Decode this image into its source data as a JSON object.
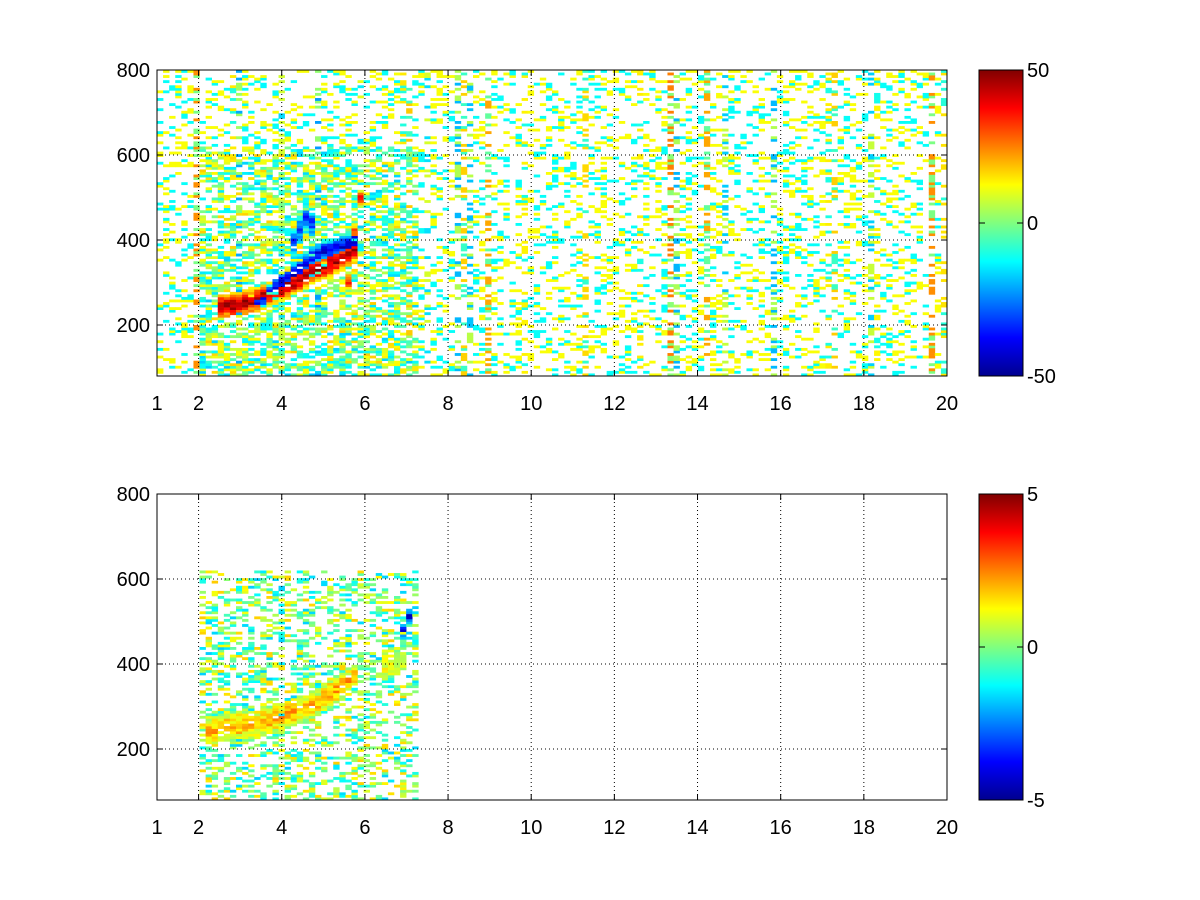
{
  "chart_data": [
    {
      "type": "heatmap",
      "title": "",
      "xlabel": "",
      "ylabel": "",
      "xlim": [
        1,
        20
      ],
      "ylim": [
        80,
        800
      ],
      "x_ticks": [
        1,
        2,
        4,
        6,
        8,
        10,
        12,
        14,
        16,
        18,
        20
      ],
      "x_tick_labels": [
        "1",
        "2",
        "4",
        "6",
        "8",
        "10",
        "12",
        "14",
        "16",
        "18",
        "20"
      ],
      "y_ticks": [
        200,
        400,
        600,
        800
      ],
      "y_tick_labels": [
        "200",
        "400",
        "600",
        "800"
      ],
      "grid": true,
      "colormap": "jet",
      "colorbar": {
        "range": [
          -50,
          50
        ],
        "ticks": [
          -50,
          0,
          50
        ],
        "tick_labels": [
          "-50",
          "0",
          "50"
        ]
      },
      "features": [
        {
          "name": "main-ridge",
          "x": [
            2.4,
            2.8,
            3.2,
            3.6,
            4.0,
            4.4,
            4.8,
            5.2,
            5.6,
            5.8
          ],
          "y": [
            245,
            245,
            255,
            268,
            285,
            305,
            330,
            345,
            365,
            380
          ],
          "value": 45,
          "width": 18
        },
        {
          "name": "secondary-ridge-blue",
          "x": [
            3.2,
            3.6,
            4.0,
            4.4,
            4.8,
            5.2,
            5.6,
            5.8
          ],
          "y": [
            255,
            265,
            300,
            330,
            365,
            380,
            390,
            400
          ],
          "value": -40,
          "width": 16
        },
        {
          "name": "blue-band-4_5",
          "x": [
            4.2,
            4.4,
            4.6,
            4.8
          ],
          "y": [
            380,
            420,
            460,
            430
          ],
          "value": -30,
          "width": 20
        },
        {
          "name": "red-band-5_7",
          "x": [
            5.6,
            5.7,
            5.8,
            5.9
          ],
          "y": [
            300,
            380,
            450,
            500
          ],
          "value": 35,
          "width": 12
        }
      ]
    },
    {
      "type": "heatmap",
      "title": "",
      "xlabel": "",
      "ylabel": "",
      "xlim": [
        1,
        20
      ],
      "ylim": [
        80,
        800
      ],
      "x_ticks": [
        1,
        2,
        4,
        6,
        8,
        10,
        12,
        14,
        16,
        18,
        20
      ],
      "x_tick_labels": [
        "1",
        "2",
        "4",
        "6",
        "8",
        "10",
        "12",
        "14",
        "16",
        "18",
        "20"
      ],
      "y_ticks": [
        200,
        400,
        600,
        800
      ],
      "y_tick_labels": [
        "200",
        "400",
        "600",
        "800"
      ],
      "grid": true,
      "colormap": "jet",
      "colorbar": {
        "range": [
          -5,
          5
        ],
        "ticks": [
          -5,
          0,
          5
        ],
        "tick_labels": [
          "-5",
          "0",
          "5"
        ]
      },
      "features": [
        {
          "name": "main-ridge",
          "x": [
            2.2,
            2.6,
            3.0,
            3.4,
            3.8,
            4.2,
            4.6,
            5.0,
            5.4,
            5.8
          ],
          "y": [
            240,
            250,
            255,
            260,
            270,
            285,
            300,
            320,
            345,
            370
          ],
          "value": 2,
          "width": 20
        },
        {
          "name": "island-6_5-7",
          "x": [
            6.4,
            6.8,
            7.0
          ],
          "y": [
            395,
            410,
            430
          ],
          "value": 1,
          "width": 20
        },
        {
          "name": "island-7-blue",
          "x": [
            6.9,
            7.0,
            7.1
          ],
          "y": [
            470,
            500,
            520
          ],
          "value": -4,
          "width": 10
        }
      ]
    }
  ]
}
